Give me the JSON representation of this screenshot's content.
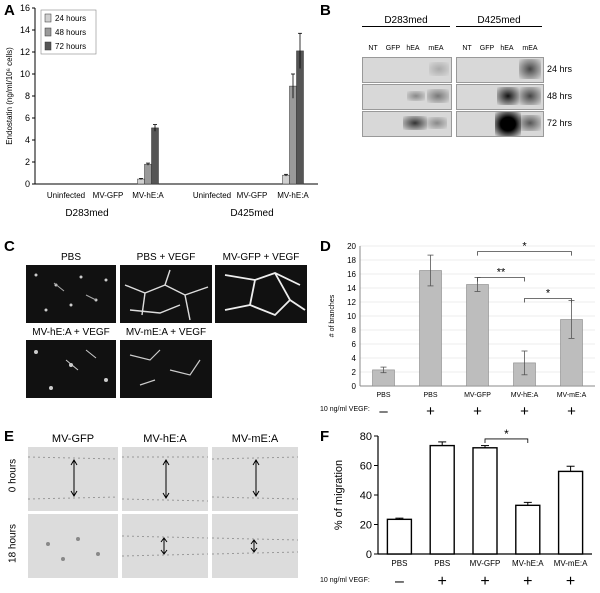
{
  "panels": {
    "A": "A",
    "B": "B",
    "C": "C",
    "D": "D",
    "E": "E",
    "F": "F"
  },
  "chart_data": [
    {
      "id": "A",
      "type": "bar",
      "ylabel": "Endostatin (ng/ml/10⁶ cells)",
      "ylim": [
        0,
        16
      ],
      "yticks": [
        0,
        2,
        4,
        6,
        8,
        10,
        12,
        14,
        16
      ],
      "groups": [
        "D283med",
        "D425med"
      ],
      "categories": [
        "Uninfected",
        "MV-GFP",
        "MV-hE:A",
        "Uninfected",
        "MV-GFP",
        "MV-hE:A"
      ],
      "series": [
        {
          "name": "24 hours",
          "color": "#d0d0d0",
          "values": [
            0,
            0,
            0.45,
            0,
            0,
            0.8
          ],
          "err": [
            0,
            0,
            0.05,
            0,
            0,
            0.08
          ]
        },
        {
          "name": "48 hours",
          "color": "#9a9a9a",
          "values": [
            0,
            0,
            1.8,
            0,
            0,
            8.9
          ],
          "err": [
            0,
            0,
            0.1,
            0,
            0,
            1.1
          ]
        },
        {
          "name": "72 hours",
          "color": "#555555",
          "values": [
            0,
            0,
            5.1,
            0,
            0,
            12.1
          ],
          "err": [
            0,
            0,
            0.3,
            0,
            0,
            1.6
          ]
        }
      ],
      "legend": "top-left"
    },
    {
      "id": "D",
      "type": "bar",
      "ylabel": "# of branches",
      "ylim": [
        0,
        20
      ],
      "yticks": [
        0,
        2,
        4,
        6,
        8,
        10,
        12,
        14,
        16,
        18,
        20
      ],
      "categories": [
        "PBS",
        "PBS",
        "MV-GFP",
        "MV-hE:A",
        "MV-mE:A"
      ],
      "values": [
        2.3,
        16.5,
        14.5,
        3.3,
        9.5
      ],
      "err": [
        0.4,
        2.2,
        1.0,
        1.7,
        2.7
      ],
      "vegf_label": "10 ng/ml VEGF:",
      "vegf": [
        "–",
        "+",
        "+",
        "+",
        "+"
      ],
      "sig": [
        {
          "from": 2,
          "to": 4,
          "text": "**"
        },
        {
          "from": 2,
          "to": 4,
          "text": "*"
        },
        {
          "from": 3,
          "to": 4,
          "text": "*"
        }
      ]
    },
    {
      "id": "F",
      "type": "bar",
      "ylabel": "% of migration",
      "ylim": [
        0,
        80
      ],
      "yticks": [
        0,
        20,
        40,
        60,
        80
      ],
      "categories": [
        "PBS",
        "PBS",
        "MV-GFP",
        "MV-hE:A",
        "MV-mE:A"
      ],
      "values": [
        23.5,
        73.5,
        72,
        33,
        56
      ],
      "err": [
        0.8,
        2.5,
        1.5,
        2.0,
        3.5
      ],
      "vegf_label": "10 ng/ml VEGF:",
      "vegf": [
        "–",
        "+",
        "+",
        "+",
        "+"
      ],
      "sig": [
        {
          "from": 2,
          "to": 3,
          "text": "*"
        }
      ]
    }
  ],
  "blot": {
    "cols": [
      "D283med",
      "D425med"
    ],
    "lanes": [
      "NT",
      "GFP",
      "hEA",
      "mEA"
    ],
    "times": [
      "24 hrs",
      "48 hrs",
      "72 hrs"
    ]
  },
  "micrographs": {
    "labels": [
      "PBS",
      "PBS + VEGF",
      "MV-GFP + VEGF",
      "MV-hE:A + VEGF",
      "MV-mE:A + VEGF"
    ]
  },
  "migration": {
    "cols": [
      "MV-GFP",
      "MV-hE:A",
      "MV-mE:A"
    ],
    "rows": [
      "0 hours",
      "18 hours"
    ]
  }
}
